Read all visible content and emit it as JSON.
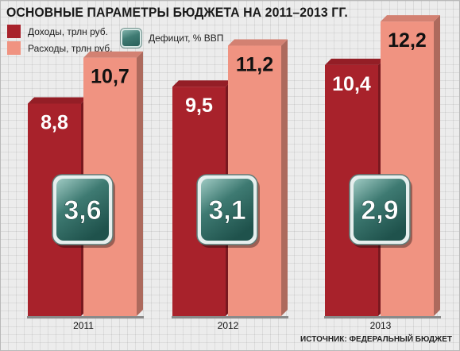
{
  "chart_data": {
    "type": "bar",
    "title": "ОСНОВНЫЕ ПАРАМЕТРЫ БЮДЖЕТА НА 2011–2013 ГГ.",
    "categories": [
      "2011",
      "2012",
      "2013"
    ],
    "series": [
      {
        "name": "Доходы, трлн руб.",
        "values": [
          8.8,
          9.5,
          10.4
        ],
        "labels": [
          "8,8",
          "9,5",
          "10,4"
        ],
        "color": "#a8222b"
      },
      {
        "name": "Расходы, трлн руб.",
        "values": [
          10.7,
          11.2,
          12.2
        ],
        "labels": [
          "10,7",
          "11,2",
          "12,2"
        ],
        "color": "#f09381"
      }
    ],
    "deficit": {
      "name": "Дефицит, % ВВП",
      "values": [
        3.6,
        3.1,
        2.9
      ],
      "labels": [
        "3,6",
        "3,1",
        "2,9"
      ],
      "color": "#2f6b64"
    },
    "grid": true,
    "legend": "top-left"
  },
  "source": "ИСТОЧНИК: ФЕДЕРАЛЬНЫЙ БЮДЖЕТ"
}
